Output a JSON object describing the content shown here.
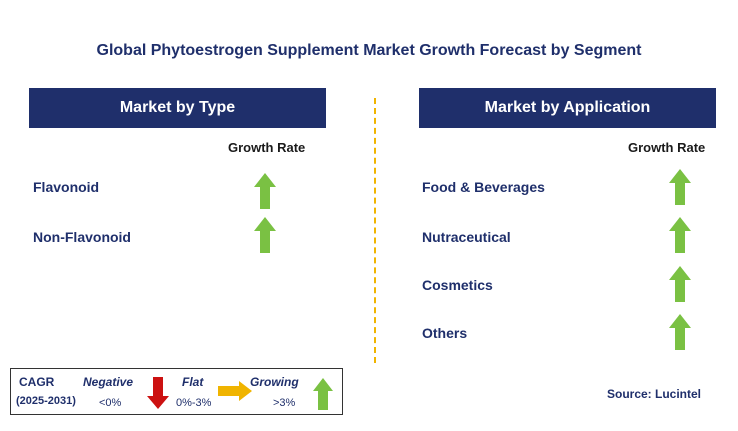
{
  "title": "Global Phytoestrogen Supplement Market Growth Forecast by Segment",
  "left_panel": {
    "header": "Market by Type",
    "growth_label": "Growth Rate",
    "items": [
      {
        "label": "Flavonoid",
        "trend": "growing"
      },
      {
        "label": "Non-Flavonoid",
        "trend": "growing"
      }
    ]
  },
  "right_panel": {
    "header": "Market by Application",
    "growth_label": "Growth Rate",
    "items": [
      {
        "label": "Food & Beverages",
        "trend": "growing"
      },
      {
        "label": "Nutraceutical",
        "trend": "growing"
      },
      {
        "label": "Cosmetics",
        "trend": "growing"
      },
      {
        "label": "Others",
        "trend": "growing"
      }
    ]
  },
  "legend": {
    "cagr": "CAGR",
    "years": "(2025-2031)",
    "negative": {
      "label": "Negative",
      "range": "<0%",
      "icon": "red-down-arrow-icon"
    },
    "flat": {
      "label": "Flat",
      "range": "0%-3%",
      "icon": "orange-right-arrow-icon"
    },
    "growing": {
      "label": "Growing",
      "range": ">3%",
      "icon": "green-up-arrow-icon"
    }
  },
  "source": "Source: Lucintel",
  "colors": {
    "navy": "#1f2f6b",
    "growing_green": "#7ac143",
    "negative_red": "#cc1111",
    "flat_orange": "#f0b400",
    "divider": "#f0b400"
  }
}
